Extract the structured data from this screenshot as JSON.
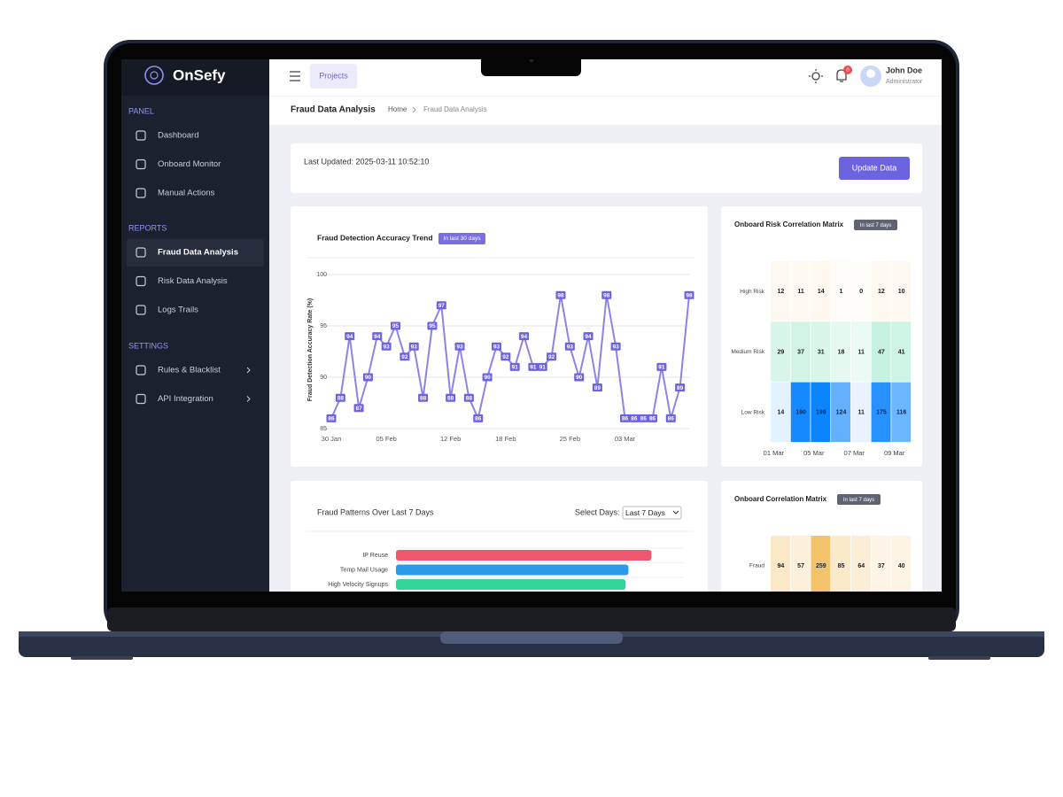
{
  "brand": "OnSefy",
  "sidebar": {
    "sections": [
      {
        "title": "PANEL",
        "items": [
          "Dashboard",
          "Onboard Monitor",
          "Manual Actions"
        ]
      },
      {
        "title": "REPORTS",
        "items": [
          "Fraud Data Analysis",
          "Risk Data Analysis",
          "Logs Trails"
        ]
      },
      {
        "title": "SETTINGS",
        "items": [
          "Rules & Blacklist",
          "API Integration"
        ]
      }
    ]
  },
  "header": {
    "tab": "Projects",
    "notifications": "0",
    "user_name": "John Doe",
    "user_role": "Administrator"
  },
  "breadcrumb": {
    "page_title": "Fraud Data Analysis",
    "home": "Home",
    "current": "Fraud Data Analysis"
  },
  "status": {
    "last_updated": "Last Updated: 2025-03-11 10:52:10",
    "button": "Update Data"
  },
  "accuracy_chart": {
    "type": "line",
    "title": "Fraud Detection Accuracy Trend",
    "badge": "In last 30 days",
    "y_label": "Fraud Detection Accuracy Rate (%)",
    "categories": [
      "30 Jan",
      null,
      null,
      null,
      null,
      null,
      "05 Feb",
      null,
      null,
      null,
      null,
      null,
      null,
      "12 Feb",
      null,
      null,
      null,
      null,
      null,
      "18 Feb",
      null,
      null,
      null,
      null,
      null,
      null,
      "25 Feb",
      null,
      null,
      null,
      null,
      null,
      "03 Mar",
      null,
      null,
      null,
      null,
      null,
      null,
      null
    ],
    "values": [
      86,
      88,
      94,
      87,
      90,
      94,
      93,
      95,
      92,
      93,
      88,
      95,
      97,
      88,
      93,
      88,
      86,
      90,
      93,
      92,
      91,
      94,
      91,
      91,
      92,
      98,
      93,
      90,
      94,
      89,
      98,
      93,
      86,
      86,
      86,
      86,
      91,
      86,
      89,
      98
    ],
    "ylim": [
      85,
      100
    ],
    "yticks": [
      85,
      90,
      95,
      100
    ],
    "color": "#8b85e6",
    "grid": true
  },
  "risk_matrix": {
    "type": "heatmap",
    "title": "Onboard Risk Correlation Matrix",
    "badge": "In last 7 days",
    "columns": [
      "01 Mar",
      null,
      "05 Mar",
      null,
      "07 Mar",
      null,
      "09 Mar"
    ],
    "rows": [
      {
        "name": "High Risk",
        "color": "#f2c36b",
        "values": [
          12,
          11,
          14,
          1,
          0,
          12,
          10
        ]
      },
      {
        "name": "Medium Risk",
        "color": "#2ecf8f",
        "values": [
          29,
          37,
          31,
          18,
          11,
          47,
          41
        ]
      },
      {
        "name": "Low Risk",
        "color": "#0a84ff",
        "values": [
          14,
          190,
          199,
          124,
          11,
          175,
          116
        ]
      }
    ]
  },
  "patterns_chart": {
    "type": "bar",
    "orientation": "horizontal",
    "title": "Fraud Patterns Over Last 7 Days",
    "select_label": "Select Days:",
    "select_value": "Last 7 Days",
    "categories": [
      "IP Reuse",
      "Temp Mail Usage",
      "High Velocity Signups"
    ],
    "values": [
      89,
      81,
      80
    ],
    "colors": [
      "#f0576f",
      "#2b9ae8",
      "#32d69b"
    ],
    "xlim": [
      0,
      100
    ]
  },
  "correlation_matrix": {
    "type": "heatmap",
    "title": "Onboard Correlation Matrix",
    "badge": "In last 7 days",
    "rows": [
      {
        "name": "Fraud",
        "color": "#f2c36b",
        "values": [
          94,
          57,
          259,
          85,
          64,
          37,
          40
        ]
      }
    ]
  }
}
